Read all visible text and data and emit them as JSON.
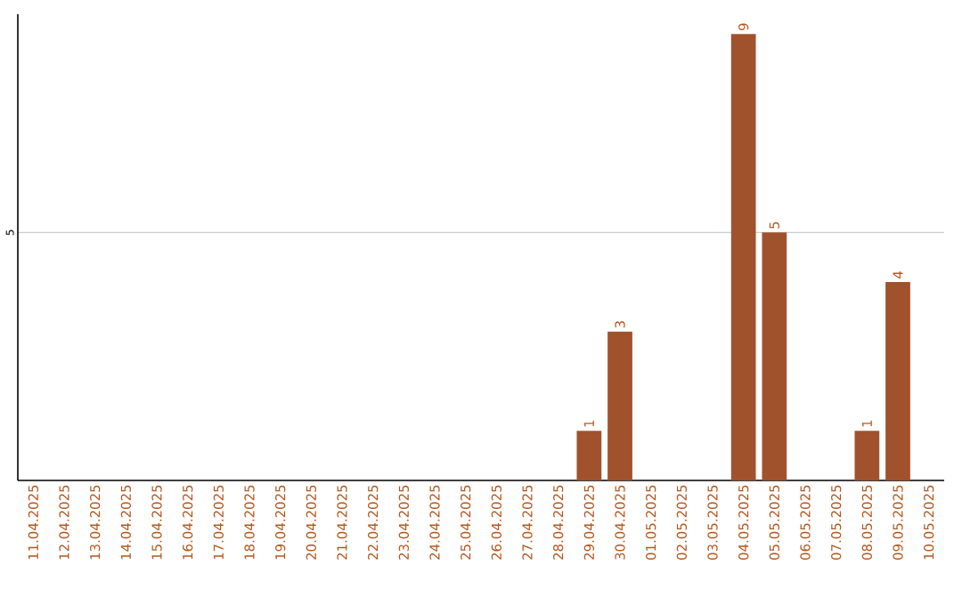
{
  "chart_data": {
    "type": "bar",
    "categories": [
      "11.04.2025",
      "12.04.2025",
      "13.04.2025",
      "14.04.2025",
      "15.04.2025",
      "16.04.2025",
      "17.04.2025",
      "18.04.2025",
      "19.04.2025",
      "20.04.2025",
      "21.04.2025",
      "22.04.2025",
      "23.04.2025",
      "24.04.2025",
      "25.04.2025",
      "26.04.2025",
      "27.04.2025",
      "28.04.2025",
      "29.04.2025",
      "30.04.2025",
      "01.05.2025",
      "02.05.2025",
      "03.05.2025",
      "04.05.2025",
      "05.05.2025",
      "06.05.2025",
      "07.05.2025",
      "08.05.2025",
      "09.05.2025",
      "10.05.2025"
    ],
    "values": [
      null,
      null,
      null,
      null,
      null,
      null,
      null,
      null,
      null,
      null,
      null,
      null,
      null,
      null,
      null,
      null,
      null,
      null,
      1,
      3,
      null,
      null,
      null,
      9,
      5,
      null,
      null,
      1,
      4,
      null
    ],
    "color": "#a0522d",
    "ylim": [
      0,
      9.4
    ],
    "yticks": [
      5
    ],
    "grid": "y",
    "data_labels": true
  }
}
